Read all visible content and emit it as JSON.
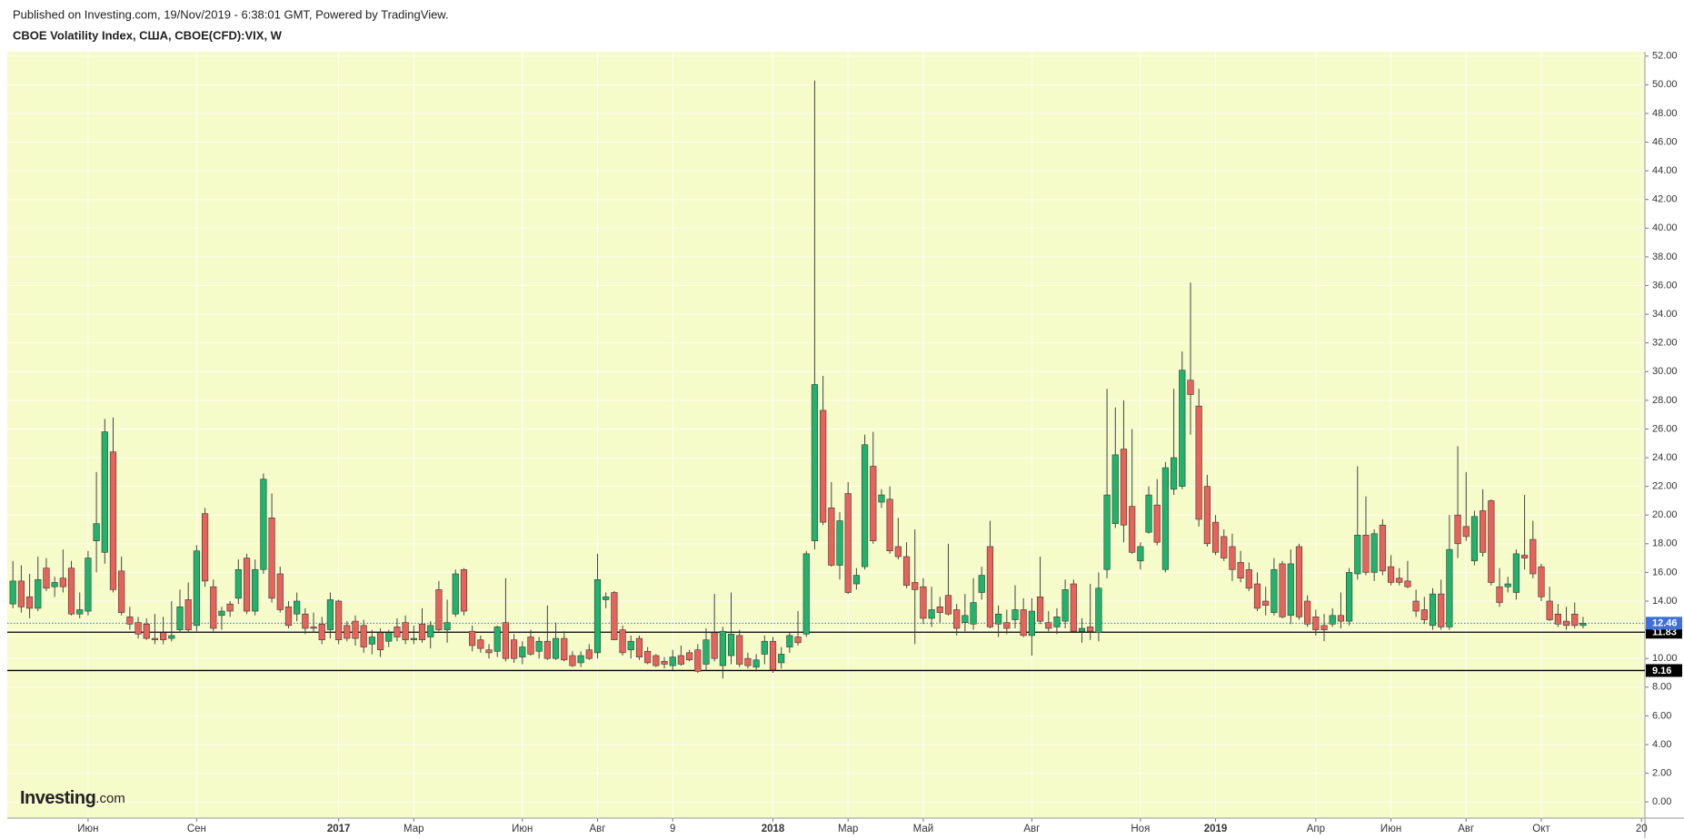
{
  "chart_data": {
    "type": "candlestick",
    "published": "Published on Investing.com, 19/Nov/2019 - 6:38:01 GMT, Powered by TradingView.",
    "title": "CBOE Volatility Index, США, CBOE(CFD):VIX, W",
    "logo": [
      "Investing",
      ".com"
    ],
    "background": "#f6fbca",
    "up_color": "#1fb36b",
    "down_color": "#e8625c",
    "border_color": "#3a3a3a",
    "wick_color": "#444444",
    "grid": true,
    "categories": [
      null,
      null,
      null,
      null,
      null,
      null,
      null,
      null,
      null,
      "Июн",
      null,
      null,
      null,
      null,
      null,
      null,
      null,
      null,
      null,
      null,
      null,
      null,
      "Сен",
      null,
      null,
      null,
      null,
      null,
      null,
      null,
      null,
      null,
      null,
      null,
      null,
      null,
      null,
      null,
      null,
      "2017",
      null,
      null,
      null,
      null,
      null,
      null,
      null,
      null,
      "Мар",
      null,
      null,
      null,
      null,
      null,
      null,
      null,
      null,
      null,
      null,
      null,
      null,
      "Июн",
      null,
      null,
      null,
      null,
      null,
      null,
      null,
      null,
      "Авг",
      null,
      null,
      null,
      null,
      null,
      null,
      null,
      null,
      "9",
      null,
      null,
      null,
      null,
      null,
      null,
      null,
      null,
      null,
      null,
      null,
      "2018",
      null,
      null,
      null,
      null,
      null,
      null,
      null,
      null,
      "Мар",
      null,
      null,
      null,
      null,
      null,
      null,
      null,
      null,
      "Май",
      null,
      null,
      null,
      null,
      null,
      null,
      null,
      null,
      null,
      null,
      null,
      null,
      "Авг",
      null,
      null,
      null,
      null,
      null,
      null,
      null,
      null,
      null,
      null,
      null,
      null,
      "Ноя",
      null,
      null,
      null,
      null,
      null,
      null,
      null,
      null,
      "2019",
      null,
      null,
      null,
      null,
      null,
      null,
      null,
      null,
      null,
      null,
      null,
      "Апр",
      null,
      null,
      null,
      null,
      null,
      null,
      null,
      null,
      "Июн",
      null,
      null,
      null,
      null,
      null,
      null,
      null,
      null,
      "Авг",
      null,
      null,
      null,
      null,
      null,
      null,
      null,
      null,
      "Окт",
      null,
      null,
      null,
      null,
      null,
      null,
      null,
      null,
      null,
      null,
      null,
      "20"
    ],
    "ohlc": [
      [
        13.8,
        16.8,
        13.5,
        15.4
      ],
      [
        15.4,
        16.5,
        13.2,
        13.6
      ],
      [
        14.3,
        15.9,
        12.8,
        13.5
      ],
      [
        13.5,
        17.1,
        13.3,
        15.5
      ],
      [
        16.3,
        17.0,
        14.7,
        14.9
      ],
      [
        15.0,
        15.7,
        14.3,
        15.3
      ],
      [
        15.6,
        17.6,
        14.6,
        15.0
      ],
      [
        16.3,
        16.8,
        13.0,
        13.1
      ],
      [
        13.1,
        14.6,
        12.8,
        13.4
      ],
      [
        13.3,
        17.5,
        13.0,
        17.0
      ],
      [
        18.2,
        23.0,
        16.0,
        19.4
      ],
      [
        17.4,
        26.7,
        16.6,
        25.8
      ],
      [
        24.4,
        26.8,
        14.6,
        14.8
      ],
      [
        16.1,
        17.1,
        13.0,
        13.2
      ],
      [
        12.9,
        13.6,
        12.0,
        12.4
      ],
      [
        12.5,
        12.9,
        11.4,
        11.7
      ],
      [
        12.4,
        12.8,
        11.3,
        11.4
      ],
      [
        11.4,
        13.1,
        11.0,
        11.3
      ],
      [
        11.8,
        12.9,
        11.0,
        11.3
      ],
      [
        11.4,
        14.0,
        11.2,
        11.6
      ],
      [
        12.0,
        14.8,
        11.8,
        13.6
      ],
      [
        14.1,
        15.3,
        11.8,
        12.0
      ],
      [
        12.3,
        17.9,
        11.9,
        17.5
      ],
      [
        20.1,
        20.5,
        15.0,
        15.4
      ],
      [
        15.0,
        15.5,
        11.9,
        12.1
      ],
      [
        13.0,
        13.6,
        12.0,
        13.3
      ],
      [
        13.8,
        14.0,
        12.9,
        13.3
      ],
      [
        14.2,
        16.9,
        13.8,
        16.2
      ],
      [
        17.0,
        17.3,
        13.1,
        13.3
      ],
      [
        13.3,
        16.9,
        13.0,
        16.2
      ],
      [
        16.2,
        22.9,
        15.9,
        22.5
      ],
      [
        19.8,
        21.5,
        13.9,
        14.2
      ],
      [
        15.9,
        16.4,
        13.2,
        13.4
      ],
      [
        13.6,
        14.0,
        12.1,
        12.3
      ],
      [
        13.1,
        14.6,
        12.6,
        14.0
      ],
      [
        13.1,
        13.5,
        11.7,
        12.1
      ],
      [
        12.2,
        13.2,
        11.8,
        12.1
      ],
      [
        12.4,
        12.9,
        11.0,
        11.3
      ],
      [
        12.0,
        14.6,
        11.4,
        14.1
      ],
      [
        14.0,
        14.1,
        11.0,
        11.3
      ],
      [
        12.3,
        12.6,
        11.2,
        11.4
      ],
      [
        12.6,
        13.0,
        10.9,
        11.4
      ],
      [
        12.3,
        12.7,
        10.4,
        10.8
      ],
      [
        11.0,
        12.0,
        10.3,
        11.5
      ],
      [
        11.8,
        12.1,
        10.1,
        10.6
      ],
      [
        11.2,
        12.0,
        10.8,
        11.8
      ],
      [
        12.2,
        12.8,
        11.2,
        11.5
      ],
      [
        12.5,
        13.0,
        11.0,
        11.3
      ],
      [
        11.3,
        12.3,
        11.0,
        11.4
      ],
      [
        12.4,
        13.5,
        11.1,
        11.3
      ],
      [
        11.5,
        12.6,
        10.7,
        12.3
      ],
      [
        14.8,
        15.4,
        11.9,
        12.0
      ],
      [
        12.0,
        14.1,
        11.1,
        12.5
      ],
      [
        13.1,
        16.2,
        12.9,
        15.9
      ],
      [
        16.2,
        16.3,
        13.0,
        13.3
      ],
      [
        11.9,
        12.3,
        10.5,
        10.9
      ],
      [
        11.3,
        11.6,
        10.4,
        10.7
      ],
      [
        10.6,
        11.0,
        10.0,
        10.4
      ],
      [
        10.5,
        12.3,
        10.1,
        12.2
      ],
      [
        12.5,
        15.6,
        9.8,
        10.0
      ],
      [
        11.3,
        11.7,
        9.7,
        10.0
      ],
      [
        10.1,
        11.2,
        9.6,
        10.8
      ],
      [
        11.5,
        12.0,
        10.2,
        10.3
      ],
      [
        10.5,
        11.5,
        10.0,
        11.2
      ],
      [
        11.2,
        13.7,
        9.9,
        10.0
      ],
      [
        10.0,
        12.5,
        9.9,
        11.4
      ],
      [
        11.4,
        11.9,
        9.8,
        9.9
      ],
      [
        10.2,
        10.5,
        9.4,
        9.5
      ],
      [
        9.7,
        10.5,
        9.4,
        10.2
      ],
      [
        10.6,
        11.0,
        9.9,
        10.0
      ],
      [
        10.4,
        17.3,
        10.0,
        15.5
      ],
      [
        14.1,
        14.6,
        13.5,
        14.3
      ],
      [
        14.6,
        14.7,
        11.3,
        11.3
      ],
      [
        12.0,
        12.3,
        10.2,
        10.4
      ],
      [
        10.6,
        11.6,
        10.0,
        11.2
      ],
      [
        11.4,
        11.6,
        9.9,
        10.1
      ],
      [
        10.5,
        10.8,
        9.6,
        9.7
      ],
      [
        10.2,
        10.3,
        9.4,
        9.5
      ],
      [
        9.8,
        10.1,
        9.3,
        9.6
      ],
      [
        9.5,
        10.6,
        9.2,
        10.1
      ],
      [
        10.2,
        10.9,
        9.5,
        9.6
      ],
      [
        10.4,
        10.6,
        9.8,
        9.9
      ],
      [
        10.6,
        11.0,
        9.0,
        9.1
      ],
      [
        9.6,
        12.1,
        9.2,
        11.3
      ],
      [
        11.8,
        14.5,
        9.8,
        10.0
      ],
      [
        9.5,
        12.2,
        8.6,
        11.9
      ],
      [
        10.2,
        14.6,
        9.6,
        11.7
      ],
      [
        11.6,
        12.0,
        9.4,
        9.6
      ],
      [
        10.0,
        10.4,
        9.3,
        9.5
      ],
      [
        9.4,
        10.3,
        9.1,
        9.9
      ],
      [
        10.3,
        11.6,
        9.6,
        11.2
      ],
      [
        11.2,
        11.5,
        9.0,
        9.2
      ],
      [
        9.7,
        10.8,
        9.3,
        10.3
      ],
      [
        10.8,
        11.8,
        10.4,
        11.6
      ],
      [
        11.5,
        13.3,
        10.9,
        11.1
      ],
      [
        11.7,
        17.5,
        11.5,
        17.3
      ],
      [
        18.2,
        50.3,
        17.6,
        29.1
      ],
      [
        27.3,
        29.7,
        19.3,
        19.5
      ],
      [
        20.5,
        22.3,
        16.4,
        16.5
      ],
      [
        16.5,
        20.2,
        15.5,
        19.6
      ],
      [
        21.5,
        22.3,
        14.5,
        14.6
      ],
      [
        15.2,
        16.3,
        14.8,
        15.8
      ],
      [
        16.4,
        25.6,
        16.2,
        24.9
      ],
      [
        23.4,
        25.8,
        18.0,
        18.2
      ],
      [
        20.9,
        21.8,
        20.5,
        21.4
      ],
      [
        21.1,
        22.0,
        17.3,
        17.5
      ],
      [
        17.8,
        19.8,
        16.9,
        17.1
      ],
      [
        17.1,
        18.1,
        14.9,
        15.1
      ],
      [
        15.3,
        19.0,
        11.0,
        14.8
      ],
      [
        15.0,
        15.6,
        12.4,
        12.8
      ],
      [
        12.8,
        15.0,
        12.2,
        13.4
      ],
      [
        13.6,
        14.3,
        12.5,
        13.2
      ],
      [
        14.4,
        18.0,
        13.0,
        13.1
      ],
      [
        13.4,
        13.8,
        11.6,
        12.1
      ],
      [
        12.5,
        14.5,
        11.9,
        13.0
      ],
      [
        12.4,
        15.6,
        12.0,
        13.9
      ],
      [
        14.6,
        16.4,
        14.1,
        15.8
      ],
      [
        17.8,
        19.6,
        12.1,
        12.2
      ],
      [
        12.4,
        13.7,
        11.5,
        13.1
      ],
      [
        12.5,
        13.4,
        11.7,
        12.1
      ],
      [
        12.7,
        15.1,
        12.1,
        13.4
      ],
      [
        13.4,
        14.2,
        11.5,
        11.6
      ],
      [
        11.6,
        14.2,
        10.2,
        13.3
      ],
      [
        14.3,
        17.1,
        12.4,
        12.6
      ],
      [
        12.5,
        13.3,
        11.9,
        12.1
      ],
      [
        12.2,
        13.5,
        11.7,
        12.9
      ],
      [
        12.6,
        15.5,
        12.1,
        14.8
      ],
      [
        15.2,
        15.5,
        11.9,
        11.9
      ],
      [
        11.9,
        12.8,
        11.1,
        12.1
      ],
      [
        12.2,
        15.2,
        11.3,
        11.9
      ],
      [
        11.8,
        16.0,
        11.2,
        14.9
      ],
      [
        16.2,
        28.8,
        15.6,
        21.4
      ],
      [
        19.4,
        27.5,
        19.1,
        24.2
      ],
      [
        24.6,
        28.0,
        18.1,
        19.3
      ],
      [
        20.6,
        26.0,
        17.3,
        17.4
      ],
      [
        16.8,
        18.1,
        16.2,
        17.8
      ],
      [
        18.8,
        22.0,
        18.7,
        21.4
      ],
      [
        20.7,
        22.5,
        17.9,
        18.1
      ],
      [
        16.2,
        23.7,
        16.0,
        23.3
      ],
      [
        21.8,
        28.8,
        21.4,
        24.0
      ],
      [
        22.0,
        31.4,
        21.8,
        30.1
      ],
      [
        29.4,
        36.2,
        25.6,
        28.4
      ],
      [
        27.6,
        28.8,
        19.2,
        19.7
      ],
      [
        22.0,
        22.8,
        17.8,
        18.0
      ],
      [
        19.5,
        20.0,
        17.2,
        17.4
      ],
      [
        18.5,
        19.0,
        16.8,
        17.0
      ],
      [
        17.8,
        18.7,
        15.4,
        16.2
      ],
      [
        16.7,
        17.5,
        15.3,
        15.6
      ],
      [
        16.2,
        16.7,
        14.7,
        14.9
      ],
      [
        15.2,
        16.0,
        13.3,
        13.5
      ],
      [
        14.0,
        15.0,
        13.0,
        13.7
      ],
      [
        13.2,
        17.0,
        13.0,
        16.2
      ],
      [
        16.6,
        16.8,
        12.8,
        12.9
      ],
      [
        13.0,
        17.6,
        12.4,
        16.6
      ],
      [
        17.8,
        18.0,
        12.7,
        12.9
      ],
      [
        14.0,
        14.4,
        12.2,
        12.4
      ],
      [
        12.9,
        13.4,
        11.6,
        12.0
      ],
      [
        12.3,
        13.1,
        11.2,
        12.0
      ],
      [
        12.4,
        13.5,
        12.2,
        13.0
      ],
      [
        13.0,
        14.6,
        12.1,
        12.6
      ],
      [
        12.6,
        16.3,
        12.3,
        16.0
      ],
      [
        15.9,
        23.4,
        15.5,
        18.6
      ],
      [
        18.6,
        21.3,
        15.8,
        16.0
      ],
      [
        16.0,
        19.0,
        15.4,
        18.7
      ],
      [
        19.3,
        19.7,
        15.8,
        16.1
      ],
      [
        16.4,
        17.2,
        15.1,
        15.3
      ],
      [
        15.6,
        16.3,
        15.1,
        15.3
      ],
      [
        15.4,
        16.8,
        14.9,
        15.0
      ],
      [
        14.0,
        14.8,
        12.9,
        13.3
      ],
      [
        13.4,
        14.3,
        12.4,
        12.7
      ],
      [
        12.3,
        14.9,
        12.0,
        14.5
      ],
      [
        14.5,
        15.5,
        12.0,
        12.2
      ],
      [
        12.2,
        20.0,
        12.0,
        17.6
      ],
      [
        20.0,
        24.8,
        17.0,
        18.0
      ],
      [
        19.2,
        23.0,
        18.2,
        18.5
      ],
      [
        16.8,
        20.3,
        16.5,
        19.9
      ],
      [
        20.3,
        21.8,
        17.1,
        17.4
      ],
      [
        21.0,
        21.1,
        15.1,
        15.3
      ],
      [
        15.0,
        16.3,
        13.6,
        13.9
      ],
      [
        15.0,
        15.7,
        14.6,
        15.2
      ],
      [
        14.6,
        17.6,
        14.1,
        17.3
      ],
      [
        17.2,
        21.4,
        16.2,
        17.0
      ],
      [
        18.3,
        19.6,
        15.6,
        15.9
      ],
      [
        16.4,
        16.6,
        14.0,
        14.3
      ],
      [
        14.0,
        15.0,
        12.6,
        12.7
      ],
      [
        13.1,
        13.8,
        12.2,
        12.4
      ],
      [
        12.6,
        13.6,
        12.0,
        12.3
      ],
      [
        13.1,
        13.9,
        12.1,
        12.3
      ],
      [
        12.3,
        12.9,
        12.1,
        12.46
      ],
      null,
      null,
      null,
      null,
      null,
      null,
      null
    ],
    "ylim": [
      -1.13,
      52.3
    ],
    "yticks": [
      {
        "value": 0,
        "label": "0.00"
      },
      {
        "value": 2,
        "label": "2.00"
      },
      {
        "value": 4,
        "label": "4.00"
      },
      {
        "value": 6,
        "label": "6.00"
      },
      {
        "value": 8,
        "label": "8.00"
      },
      {
        "value": 10,
        "label": "10.00"
      },
      {
        "value": 12,
        "label": "12.00"
      },
      {
        "value": 14,
        "label": "14.00"
      },
      {
        "value": 16,
        "label": "16.00"
      },
      {
        "value": 18,
        "label": "18.00"
      },
      {
        "value": 20,
        "label": "20.00"
      },
      {
        "value": 22,
        "label": "22.00"
      },
      {
        "value": 24,
        "label": "24.00"
      },
      {
        "value": 26,
        "label": "26.00"
      },
      {
        "value": 28,
        "label": "28.00"
      },
      {
        "value": 30,
        "label": "30.00"
      },
      {
        "value": 32,
        "label": "32.00"
      },
      {
        "value": 34,
        "label": "34.00"
      },
      {
        "value": 36,
        "label": "36.00"
      },
      {
        "value": 38,
        "label": "38.00"
      },
      {
        "value": 40,
        "label": "40.00"
      },
      {
        "value": 42,
        "label": "42.00"
      },
      {
        "value": 44,
        "label": "44.00"
      },
      {
        "value": 46,
        "label": "46.00"
      },
      {
        "value": 48,
        "label": "48.00"
      },
      {
        "value": 50,
        "label": "50.00"
      },
      {
        "value": 52,
        "label": "52.00"
      }
    ],
    "hlines": [
      {
        "value": 11.83,
        "color": "#000000"
      },
      {
        "value": 9.16,
        "color": "#000000"
      }
    ],
    "last_price": {
      "value": 12.46,
      "color": "#3f6fd8"
    }
  }
}
